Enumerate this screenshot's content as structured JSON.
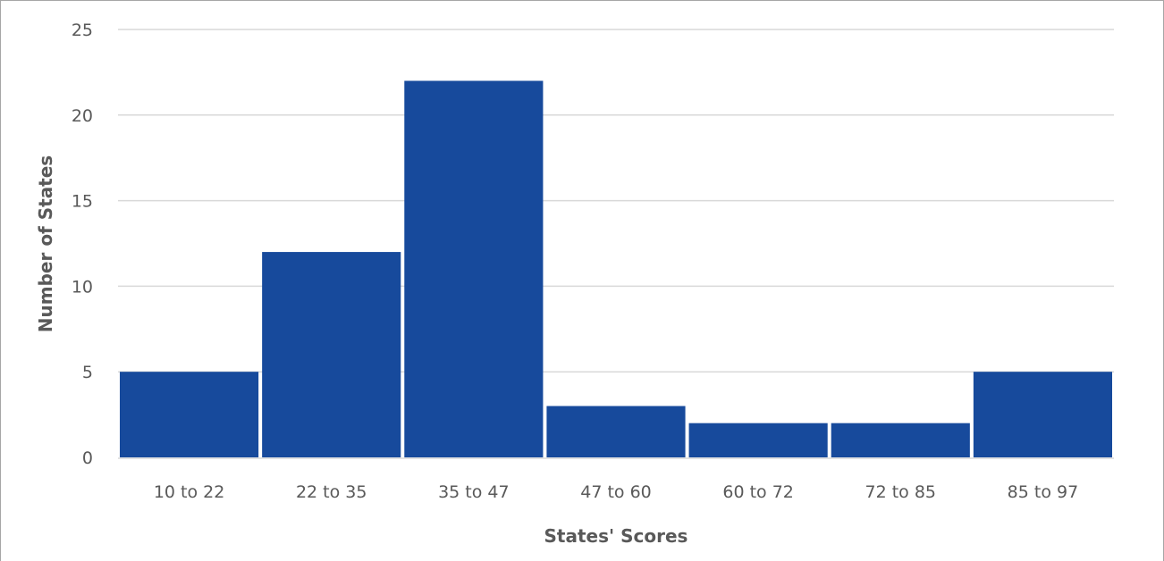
{
  "chart_data": {
    "type": "bar",
    "title": "",
    "xlabel": "States' Scores",
    "ylabel": "Number of States",
    "categories": [
      "10 to 22",
      "22 to 35",
      "35 to 47",
      "47 to 60",
      "60 to 72",
      "72 to 85",
      "85 to 97"
    ],
    "values": [
      5,
      12,
      22,
      3,
      2,
      2,
      5
    ],
    "ylim": [
      0,
      25
    ],
    "yticks": [
      0,
      5,
      10,
      15,
      20,
      25
    ],
    "grid": true,
    "bar_color": "#174A9C",
    "grid_color": "#d9d9d9"
  }
}
